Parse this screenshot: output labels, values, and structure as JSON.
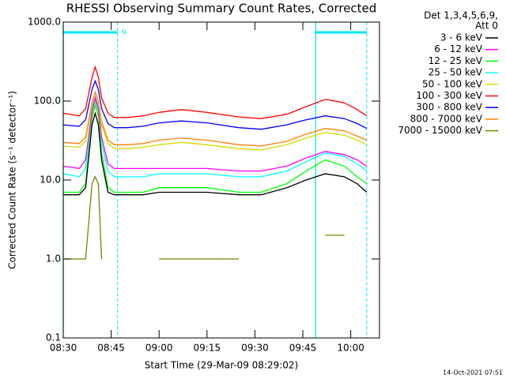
{
  "chart_data": {
    "type": "line",
    "title": "RHESSI Observing Summary Count Rates, Corrected",
    "x_label": "Start Time (29-Mar-09 08:29:02)",
    "y_label": "Corrected Count Rate (s⁻¹ detector⁻¹)",
    "legend_title": [
      "Det 1,3,4,5,6,9,",
      "Att 0"
    ],
    "timestamp": "14-Oct-2021 07:51",
    "log_y": true,
    "grid": false,
    "legend": "outside-right",
    "xlim": [
      0,
      99
    ],
    "xticks": [
      {
        "value": 0,
        "label": "08:30"
      },
      {
        "value": 15,
        "label": "08:45"
      },
      {
        "value": 30,
        "label": "09:00"
      },
      {
        "value": 45,
        "label": "09:15"
      },
      {
        "value": 60,
        "label": "09:30"
      },
      {
        "value": 75,
        "label": "09:45"
      },
      {
        "value": 90,
        "label": "10:00"
      }
    ],
    "ylim": [
      0.1,
      1000
    ],
    "yticks": [
      {
        "value": 1000,
        "label": "1000.0"
      },
      {
        "value": 100,
        "label": "100.0"
      },
      {
        "value": 10,
        "label": "10.0"
      },
      {
        "value": 1,
        "label": "1.0"
      },
      0.1
    ],
    "intervals": [
      {
        "start": 0,
        "end": 17,
        "label": "N",
        "color": "#00e8f0"
      },
      {
        "start": 79,
        "end": 95,
        "color": "#00e8f0"
      }
    ],
    "x": [
      0,
      5,
      7,
      9,
      10,
      11,
      12,
      14,
      16,
      20,
      25,
      30,
      37,
      45,
      55,
      62,
      70,
      76,
      82,
      88,
      92,
      95
    ],
    "series": [
      {
        "name": "3 - 6 keV",
        "color": "#000000",
        "values": [
          6.5,
          6.5,
          8,
          50,
          70,
          50,
          18,
          7,
          6.5,
          6.5,
          6.5,
          7,
          7,
          7,
          6.5,
          6.5,
          8,
          10,
          12,
          11,
          9,
          7
        ]
      },
      {
        "name": "6 - 12 keV",
        "color": "#ff00ff",
        "values": [
          15,
          14,
          18,
          75,
          110,
          80,
          35,
          16,
          14,
          14,
          14,
          14,
          14,
          14,
          13,
          13,
          15,
          19,
          23,
          21,
          18,
          15
        ]
      },
      {
        "name": "12 - 25 keV",
        "color": "#00ff00",
        "values": [
          7,
          7,
          9,
          60,
          90,
          65,
          22,
          8,
          7,
          7,
          7,
          8,
          8,
          8,
          7,
          7,
          9,
          13,
          18,
          15,
          11,
          9
        ]
      },
      {
        "name": "25 - 50 keV",
        "color": "#00ffff",
        "values": [
          12,
          11,
          14,
          70,
          100,
          75,
          30,
          13,
          11,
          11,
          11,
          12,
          12,
          12,
          11,
          11,
          13,
          17,
          22,
          20,
          16,
          13
        ]
      },
      {
        "name": "50 - 100 keV",
        "color": "#d8d800",
        "values": [
          27,
          26,
          31,
          85,
          115,
          90,
          50,
          29,
          25,
          25,
          26,
          28,
          30,
          28,
          25,
          24,
          28,
          34,
          40,
          37,
          32,
          28
        ]
      },
      {
        "name": "100 - 300 keV",
        "color": "#ff0000",
        "values": [
          70,
          65,
          80,
          200,
          270,
          200,
          110,
          70,
          62,
          62,
          65,
          72,
          78,
          72,
          63,
          60,
          68,
          85,
          105,
          95,
          78,
          65
        ]
      },
      {
        "name": "300 - 800 keV",
        "color": "#0000ff",
        "values": [
          50,
          48,
          58,
          140,
          180,
          140,
          80,
          52,
          46,
          46,
          48,
          53,
          56,
          53,
          46,
          44,
          50,
          58,
          65,
          60,
          52,
          45
        ]
      },
      {
        "name": "800 - 7000 keV",
        "color": "#ff8000",
        "values": [
          30,
          29,
          35,
          95,
          130,
          100,
          55,
          32,
          28,
          28,
          29,
          32,
          34,
          32,
          28,
          27,
          31,
          38,
          45,
          42,
          36,
          32
        ]
      },
      {
        "name": "7000 - 15000 keV",
        "color": "#808000",
        "values": [
          1,
          1,
          1,
          9,
          11,
          9,
          1,
          null,
          null,
          null,
          null,
          1,
          1,
          1,
          1,
          null,
          null,
          null,
          2,
          2,
          null,
          null
        ]
      }
    ]
  }
}
